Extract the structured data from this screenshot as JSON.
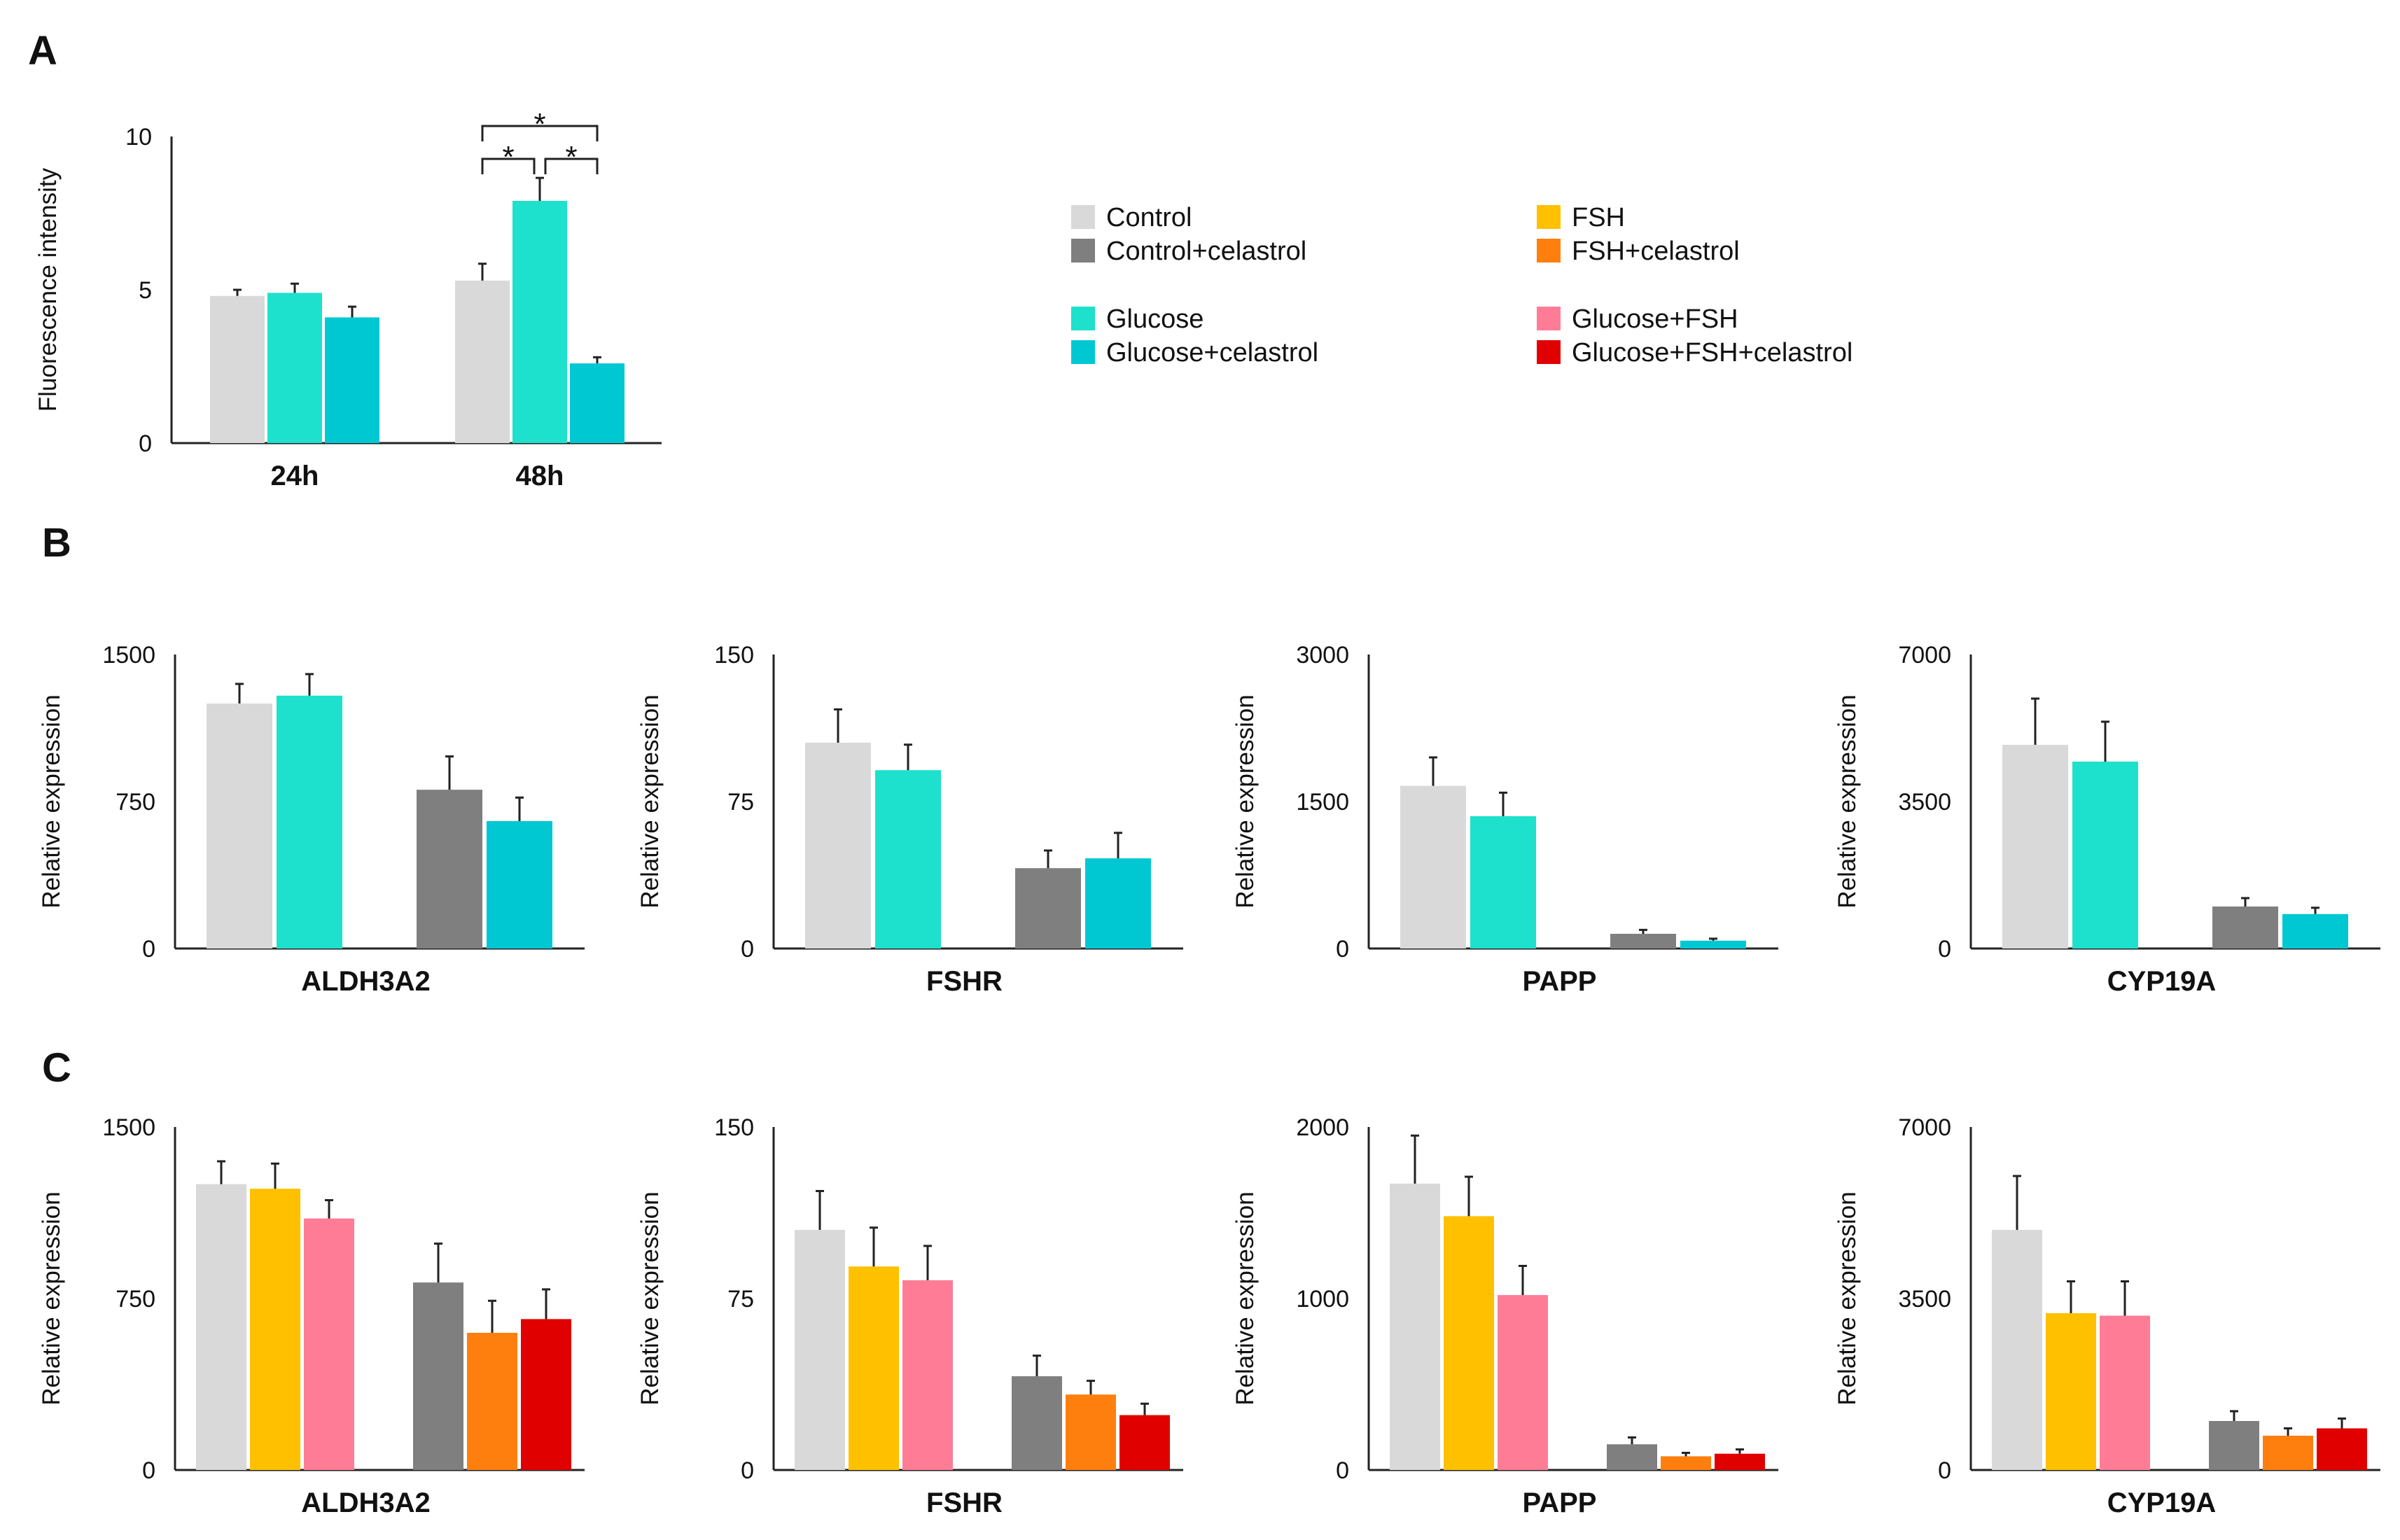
{
  "panels": {
    "A": "A",
    "B": "B",
    "C": "C"
  },
  "legend": [
    {
      "label": "Control",
      "color": "#d9d9d9"
    },
    {
      "label": "Control+celastrol",
      "color": "#7f7f7f"
    },
    {
      "label": "Glucose",
      "color": "#1de1cc"
    },
    {
      "label": "Glucose+celastrol",
      "color": "#00c8d2"
    },
    {
      "label": "FSH",
      "color": "#ffc000"
    },
    {
      "label": "FSH+celastrol",
      "color": "#ff7f0e"
    },
    {
      "label": "Glucose+FSH",
      "color": "#ff7c97"
    },
    {
      "label": "Glucose+FSH+celastrol",
      "color": "#e00000"
    }
  ],
  "chart_data": [
    {
      "id": "A",
      "type": "bar",
      "ylabel": "Fluorescence intensity",
      "xlabel": "",
      "ylim": [
        0,
        10
      ],
      "yticks": [
        0,
        5,
        10
      ],
      "categories": [
        "24h",
        "48h"
      ],
      "series": [
        {
          "name": "Control",
          "color": "#d9d9d9",
          "values": [
            4.8,
            5.3
          ],
          "errors": [
            0.2,
            0.55
          ]
        },
        {
          "name": "Glucose",
          "color": "#1de1cc",
          "values": [
            4.9,
            7.9
          ],
          "errors": [
            0.3,
            0.75
          ]
        },
        {
          "name": "Glucose+celastrol",
          "color": "#00c8d2",
          "values": [
            4.1,
            2.6
          ],
          "errors": [
            0.35,
            0.2
          ]
        }
      ],
      "significance": [
        {
          "category": "48h",
          "from": 0,
          "to": 2,
          "label": "*"
        },
        {
          "category": "48h",
          "from": 0,
          "to": 1,
          "label": "*"
        },
        {
          "category": "48h",
          "from": 1,
          "to": 2,
          "label": "*"
        }
      ]
    },
    {
      "id": "B1",
      "type": "bar",
      "xlabel": "ALDH3A2",
      "ylabel": "Relative expression",
      "ylim": [
        0,
        1500
      ],
      "yticks": [
        0,
        750,
        1500
      ],
      "groups": [
        [
          {
            "name": "Control",
            "color": "#d9d9d9",
            "value": 1250,
            "error": 100
          },
          {
            "name": "Glucose",
            "color": "#1de1cc",
            "value": 1290,
            "error": 110
          }
        ],
        [
          {
            "name": "Control+celastrol",
            "color": "#7f7f7f",
            "value": 810,
            "error": 170
          },
          {
            "name": "Glucose+celastrol",
            "color": "#00c8d2",
            "value": 650,
            "error": 120
          }
        ]
      ]
    },
    {
      "id": "B2",
      "type": "bar",
      "xlabel": "FSHR",
      "ylabel": "Relative expression",
      "ylim": [
        0,
        150
      ],
      "yticks": [
        0,
        75,
        150
      ],
      "groups": [
        [
          {
            "name": "Control",
            "color": "#d9d9d9",
            "value": 105,
            "error": 17
          },
          {
            "name": "Glucose",
            "color": "#1de1cc",
            "value": 91,
            "error": 13
          }
        ],
        [
          {
            "name": "Control+celastrol",
            "color": "#7f7f7f",
            "value": 41,
            "error": 9
          },
          {
            "name": "Glucose+celastrol",
            "color": "#00c8d2",
            "value": 46,
            "error": 13
          }
        ]
      ]
    },
    {
      "id": "B3",
      "type": "bar",
      "xlabel": "PAPP",
      "ylabel": "Relative expression",
      "ylim": [
        0,
        3000
      ],
      "yticks": [
        0,
        1500,
        3000
      ],
      "groups": [
        [
          {
            "name": "Control",
            "color": "#d9d9d9",
            "value": 1660,
            "error": 290
          },
          {
            "name": "Glucose",
            "color": "#1de1cc",
            "value": 1350,
            "error": 240
          }
        ],
        [
          {
            "name": "Control+celastrol",
            "color": "#7f7f7f",
            "value": 150,
            "error": 40
          },
          {
            "name": "Glucose+celastrol",
            "color": "#00c8d2",
            "value": 80,
            "error": 20
          }
        ]
      ]
    },
    {
      "id": "B4",
      "type": "bar",
      "xlabel": "CYP19A",
      "ylabel": "Relative expression",
      "ylim": [
        0,
        7000
      ],
      "yticks": [
        0,
        3500,
        7000
      ],
      "groups": [
        [
          {
            "name": "Control",
            "color": "#d9d9d9",
            "value": 4850,
            "error": 1100
          },
          {
            "name": "Glucose",
            "color": "#1de1cc",
            "value": 4450,
            "error": 950
          }
        ],
        [
          {
            "name": "Control+celastrol",
            "color": "#7f7f7f",
            "value": 1000,
            "error": 200
          },
          {
            "name": "Glucose+celastrol",
            "color": "#00c8d2",
            "value": 820,
            "error": 150
          }
        ]
      ]
    },
    {
      "id": "C1",
      "type": "bar",
      "xlabel": "ALDH3A2",
      "ylabel": "Relative expression",
      "ylim": [
        0,
        1500
      ],
      "yticks": [
        0,
        750,
        1500
      ],
      "groups": [
        [
          {
            "name": "Control",
            "color": "#d9d9d9",
            "value": 1250,
            "error": 100
          },
          {
            "name": "FSH",
            "color": "#ffc000",
            "value": 1230,
            "error": 110
          },
          {
            "name": "Glucose+FSH",
            "color": "#ff7c97",
            "value": 1100,
            "error": 80
          }
        ],
        [
          {
            "name": "Control+celastrol",
            "color": "#7f7f7f",
            "value": 820,
            "error": 170
          },
          {
            "name": "FSH+celastrol",
            "color": "#ff7f0e",
            "value": 600,
            "error": 140
          },
          {
            "name": "Glucose+FSH+celastrol",
            "color": "#e00000",
            "value": 660,
            "error": 130
          }
        ]
      ]
    },
    {
      "id": "C2",
      "type": "bar",
      "xlabel": "FSHR",
      "ylabel": "Relative expression",
      "ylim": [
        0,
        150
      ],
      "yticks": [
        0,
        75,
        150
      ],
      "groups": [
        [
          {
            "name": "Control",
            "color": "#d9d9d9",
            "value": 105,
            "error": 17
          },
          {
            "name": "FSH",
            "color": "#ffc000",
            "value": 89,
            "error": 17
          },
          {
            "name": "Glucose+FSH",
            "color": "#ff7c97",
            "value": 83,
            "error": 15
          }
        ],
        [
          {
            "name": "Control+celastrol",
            "color": "#7f7f7f",
            "value": 41,
            "error": 9
          },
          {
            "name": "FSH+celastrol",
            "color": "#ff7f0e",
            "value": 33,
            "error": 6
          },
          {
            "name": "Glucose+FSH+celastrol",
            "color": "#e00000",
            "value": 24,
            "error": 5
          }
        ]
      ]
    },
    {
      "id": "C3",
      "type": "bar",
      "xlabel": "PAPP",
      "ylabel": "Relative expression",
      "ylim": [
        0,
        2000
      ],
      "yticks": [
        0,
        1000,
        2000
      ],
      "groups": [
        [
          {
            "name": "Control",
            "color": "#d9d9d9",
            "value": 1670,
            "error": 280
          },
          {
            "name": "FSH",
            "color": "#ffc000",
            "value": 1480,
            "error": 230
          },
          {
            "name": "Glucose+FSH",
            "color": "#ff7c97",
            "value": 1020,
            "error": 170
          }
        ],
        [
          {
            "name": "Control+celastrol",
            "color": "#7f7f7f",
            "value": 150,
            "error": 40
          },
          {
            "name": "FSH+celastrol",
            "color": "#ff7f0e",
            "value": 80,
            "error": 20
          },
          {
            "name": "Glucose+FSH+celastrol",
            "color": "#e00000",
            "value": 95,
            "error": 25
          }
        ]
      ]
    },
    {
      "id": "C4",
      "type": "bar",
      "xlabel": "CYP19A",
      "ylabel": "Relative expression",
      "ylim": [
        0,
        7000
      ],
      "yticks": [
        0,
        3500,
        7000
      ],
      "groups": [
        [
          {
            "name": "Control",
            "color": "#d9d9d9",
            "value": 4900,
            "error": 1100
          },
          {
            "name": "FSH",
            "color": "#ffc000",
            "value": 3200,
            "error": 650
          },
          {
            "name": "Glucose+FSH",
            "color": "#ff7c97",
            "value": 3150,
            "error": 700
          }
        ],
        [
          {
            "name": "Control+celastrol",
            "color": "#7f7f7f",
            "value": 1000,
            "error": 200
          },
          {
            "name": "FSH+celastrol",
            "color": "#ff7f0e",
            "value": 700,
            "error": 150
          },
          {
            "name": "Glucose+FSH+celastrol",
            "color": "#e00000",
            "value": 850,
            "error": 200
          }
        ]
      ]
    }
  ]
}
